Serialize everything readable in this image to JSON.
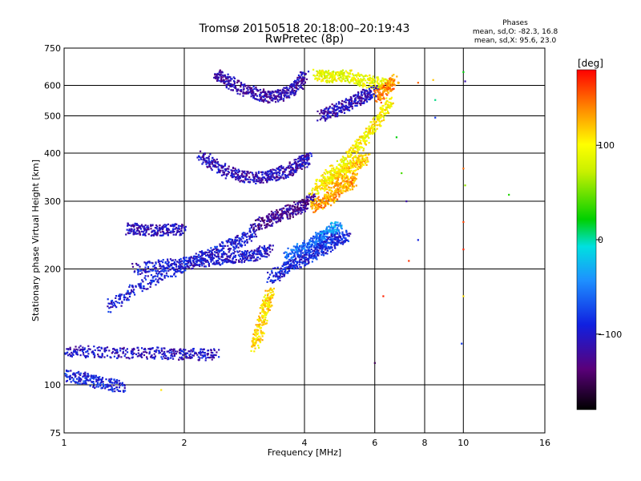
{
  "chart_data": {
    "type": "scatter",
    "title": "Tromsø 20150518 20:18:00–20:19:43",
    "subtitle": "RwPretec (8p)",
    "xlabel": "Frequency [MHz]",
    "ylabel": "Stationary phase Virtual Height [km]",
    "x_scale": "log",
    "y_scale": "log",
    "xlim": [
      1,
      16
    ],
    "ylim": [
      75,
      750
    ],
    "x_ticks": [
      1,
      2,
      4,
      6,
      8,
      10,
      16
    ],
    "x_tick_labels": [
      "1",
      "2",
      "4",
      "6",
      "8",
      "10",
      "16"
    ],
    "y_ticks": [
      75,
      100,
      200,
      300,
      400,
      500,
      600,
      750
    ],
    "y_tick_labels": [
      "75",
      "100",
      "200",
      "300",
      "400",
      "500",
      "600",
      "750"
    ],
    "grid": true,
    "phases_box": {
      "title": "Phases",
      "line_o": "mean, sd,O: -82.3, 16.8",
      "line_x": "mean, sd,X:  95.6, 23.0"
    },
    "colorbar": {
      "label": "[deg]",
      "range": [
        -180,
        180
      ],
      "ticks": [
        100,
        0,
        -100
      ],
      "tick_labels": [
        "100",
        "0",
        "−100"
      ]
    },
    "traces": [
      {
        "f": [
          1.0,
          1.2,
          1.5,
          1.8,
          2.1,
          2.4
        ],
        "h": [
          122,
          122,
          121,
          121,
          120,
          120
        ],
        "phase": -105
      },
      {
        "f": [
          1.0,
          1.12,
          1.25,
          1.4
        ],
        "h": [
          106,
          104,
          101,
          99
        ],
        "phase": -90
      },
      {
        "f": [
          1.3,
          1.5,
          1.8,
          2.1,
          2.4,
          2.7,
          3.0
        ],
        "h": [
          160,
          178,
          195,
          210,
          222,
          235,
          248
        ],
        "phase": -95
      },
      {
        "f": [
          1.5,
          1.8,
          2.1,
          2.4,
          2.7,
          3.0,
          3.3
        ],
        "h": [
          200,
          205,
          208,
          212,
          215,
          218,
          225
        ],
        "phase": -100
      },
      {
        "f": [
          1.45,
          1.6,
          1.8,
          2.0
        ],
        "h": [
          255,
          253,
          252,
          255
        ],
        "phase": -110
      },
      {
        "f": [
          2.2,
          2.4,
          2.7,
          3.0,
          3.3,
          3.6,
          3.9,
          4.1
        ],
        "h": [
          395,
          370,
          350,
          345,
          348,
          360,
          375,
          390
        ],
        "phase": -110
      },
      {
        "f": [
          2.4,
          2.6,
          2.9,
          3.2,
          3.5,
          3.8,
          4.0
        ],
        "h": [
          650,
          610,
          580,
          560,
          565,
          590,
          640
        ],
        "phase": -115
      },
      {
        "f": [
          3.0,
          3.3,
          3.6,
          3.9,
          4.2
        ],
        "h": [
          260,
          270,
          280,
          290,
          305
        ],
        "phase": -125
      },
      {
        "f": [
          3.0,
          3.1,
          3.2,
          3.3
        ],
        "h": [
          125,
          140,
          160,
          175
        ],
        "phase": 110
      },
      {
        "f": [
          4.2,
          4.5,
          4.8,
          5.1,
          5.4
        ],
        "h": [
          290,
          300,
          315,
          330,
          345
        ],
        "phase": 130
      },
      {
        "f": [
          4.5,
          4.8,
          5.1,
          5.4,
          5.7
        ],
        "h": [
          330,
          345,
          360,
          375,
          390
        ],
        "phase": 115
      },
      {
        "f": [
          4.3,
          4.6,
          4.9
        ],
        "h": [
          240,
          250,
          260
        ],
        "phase": -40
      },
      {
        "f": [
          3.6,
          3.9,
          4.2,
          4.5
        ],
        "h": [
          215,
          225,
          232,
          240
        ],
        "phase": -60
      },
      {
        "f": [
          3.3,
          3.6,
          3.9,
          4.2,
          4.5,
          4.8,
          5.1
        ],
        "h": [
          190,
          200,
          210,
          218,
          228,
          238,
          245
        ],
        "phase": -90
      },
      {
        "f": [
          4.2,
          4.6,
          5.0,
          5.4,
          5.8,
          6.2,
          6.6
        ],
        "h": [
          320,
          350,
          375,
          410,
          450,
          500,
          550
        ],
        "phase": 100
      },
      {
        "f": [
          4.3,
          4.6,
          5.0,
          5.5,
          6.0,
          6.5
        ],
        "h": [
          640,
          630,
          640,
          620,
          610,
          600
        ],
        "phase": 90
      },
      {
        "f": [
          4.4,
          4.8,
          5.2,
          5.6,
          6.0
        ],
        "h": [
          500,
          520,
          540,
          560,
          580
        ],
        "phase": -110
      },
      {
        "f": [
          6.1,
          6.4,
          6.8
        ],
        "h": [
          560,
          590,
          620
        ],
        "phase": 140
      }
    ],
    "isolated_points": [
      {
        "f": 7.7,
        "h": 610,
        "phase": 150
      },
      {
        "f": 8.4,
        "h": 620,
        "phase": 120
      },
      {
        "f": 8.5,
        "h": 550,
        "phase": 5
      },
      {
        "f": 8.5,
        "h": 495,
        "phase": -80
      },
      {
        "f": 10.0,
        "h": 650,
        "phase": 20
      },
      {
        "f": 10.1,
        "h": 615,
        "phase": -115
      },
      {
        "f": 10.0,
        "h": 365,
        "phase": 150
      },
      {
        "f": 10.1,
        "h": 330,
        "phase": 60
      },
      {
        "f": 10.0,
        "h": 265,
        "phase": 160
      },
      {
        "f": 10.0,
        "h": 225,
        "phase": 170
      },
      {
        "f": 10.0,
        "h": 170,
        "phase": 110
      },
      {
        "f": 9.9,
        "h": 128,
        "phase": -80
      },
      {
        "f": 13.0,
        "h": 312,
        "phase": 30
      },
      {
        "f": 7.3,
        "h": 210,
        "phase": 165
      },
      {
        "f": 7.7,
        "h": 238,
        "phase": -90
      },
      {
        "f": 7.2,
        "h": 300,
        "phase": -115
      },
      {
        "f": 6.0,
        "h": 114,
        "phase": -150
      },
      {
        "f": 6.3,
        "h": 170,
        "phase": 170
      },
      {
        "f": 7.0,
        "h": 355,
        "phase": 40
      },
      {
        "f": 6.8,
        "h": 440,
        "phase": 20
      },
      {
        "f": 1.75,
        "h": 97,
        "phase": 110
      }
    ]
  }
}
